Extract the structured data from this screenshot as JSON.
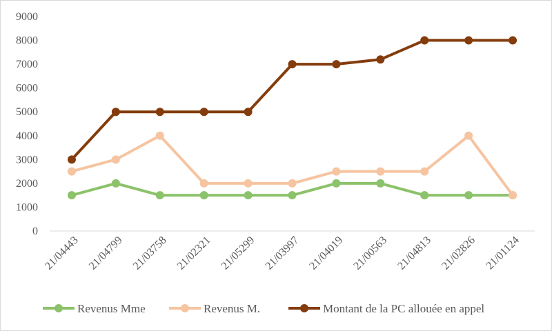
{
  "chart_data": {
    "type": "line",
    "title": "",
    "xlabel": "",
    "ylabel": "",
    "ylim": [
      0,
      9000
    ],
    "yticks": [
      0,
      1000,
      2000,
      3000,
      4000,
      5000,
      6000,
      7000,
      8000,
      9000
    ],
    "grid": false,
    "legend_position": "bottom",
    "categories": [
      "21/04443",
      "21/04799",
      "21/03758",
      "21/02321",
      "21/05299",
      "21/03997",
      "21/04019",
      "21/00563",
      "21/04813",
      "21/02826",
      "21/01124"
    ],
    "series": [
      {
        "name": "Revenus Mme",
        "color": "#8cc26a",
        "values": [
          1500,
          2000,
          1500,
          1500,
          1500,
          1500,
          2000,
          2000,
          1500,
          1500,
          1500
        ]
      },
      {
        "name": "Revenus M.",
        "color": "#f6c4a0",
        "values": [
          2500,
          3000,
          4000,
          2000,
          2000,
          2000,
          2500,
          2500,
          2500,
          4000,
          1500
        ]
      },
      {
        "name": "Montant de la PC allouée en appel",
        "color": "#843c0c",
        "values": [
          3000,
          5000,
          5000,
          5000,
          5000,
          7000,
          7000,
          7200,
          8000,
          8000,
          8000
        ]
      }
    ]
  }
}
